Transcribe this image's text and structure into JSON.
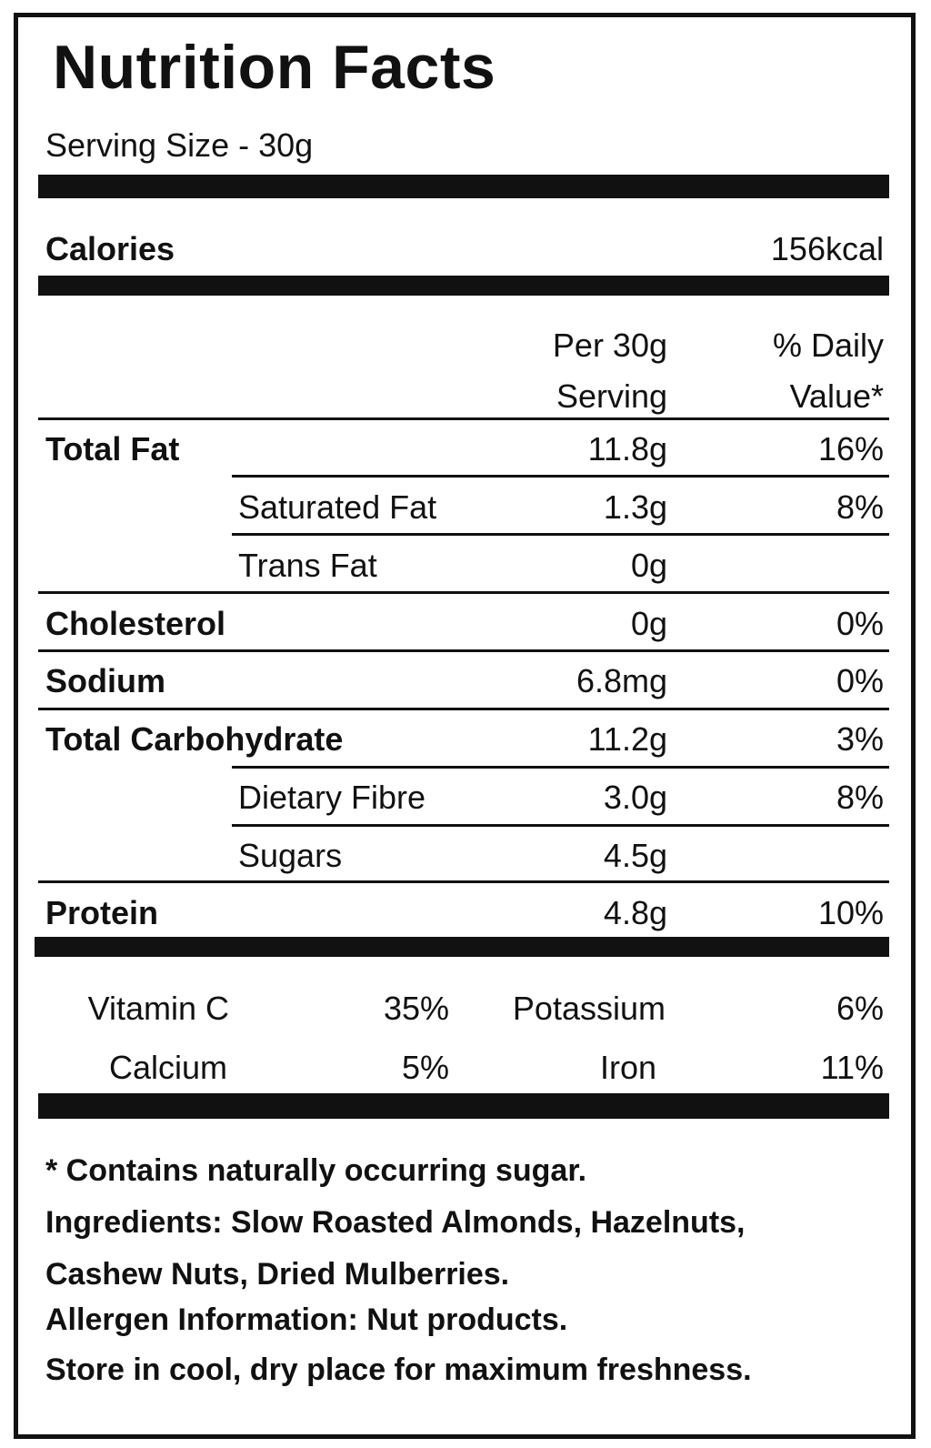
{
  "label": {
    "title": "Nutrition Facts",
    "serving_size": "Serving Size - 30g",
    "calories": {
      "label": "Calories",
      "value": "156kcal"
    },
    "column_headers": {
      "per_serving_line1": "Per 30g",
      "per_serving_line2": "Serving",
      "daily_value_line1": "% Daily",
      "daily_value_line2": "Value*"
    },
    "nutrients": [
      {
        "name": "Total Fat",
        "amount": "11.8g",
        "dv": "16%"
      },
      {
        "name": "Saturated Fat",
        "amount": "1.3g",
        "dv": "8%"
      },
      {
        "name": "Trans Fat",
        "amount": "0g",
        "dv": ""
      },
      {
        "name": "Cholesterol",
        "amount": "0g",
        "dv": "0%"
      },
      {
        "name": "Sodium",
        "amount": "6.8mg",
        "dv": "0%"
      },
      {
        "name": "Total Carbohydrate",
        "amount": "11.2g",
        "dv": "3%"
      },
      {
        "name": "Dietary Fibre",
        "amount": "3.0g",
        "dv": "8%"
      },
      {
        "name": "Sugars",
        "amount": "4.5g",
        "dv": ""
      },
      {
        "name": "Protein",
        "amount": "4.8g",
        "dv": "10%"
      }
    ],
    "vitamins": [
      {
        "name": "Vitamin C",
        "value": "35%"
      },
      {
        "name": "Potassium",
        "value": "6%"
      },
      {
        "name": "Calcium",
        "value": "5%"
      },
      {
        "name": "Iron",
        "value": "11%"
      }
    ],
    "notes": {
      "sugar_note": "* Contains naturally occurring sugar.",
      "ingredients_line1": "Ingredients: Slow Roasted Almonds, Hazelnuts,",
      "ingredients_line2": "Cashew Nuts, Dried Mulberries.",
      "allergen": "Allergen Information: Nut products.",
      "storage": "Store in cool, dry place for maximum freshness."
    }
  }
}
